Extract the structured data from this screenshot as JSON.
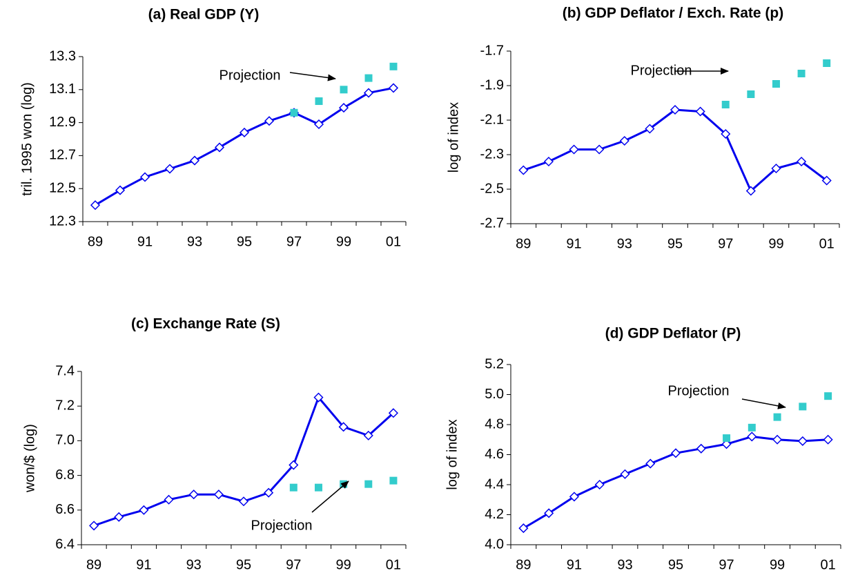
{
  "chart_data": [
    {
      "type": "line",
      "title": "(a) Real GDP (Y)",
      "y_label": "tril. 1995 won (log)",
      "annotation": "Projection",
      "categories": [
        "89",
        null,
        "91",
        null,
        "93",
        null,
        "95",
        null,
        "97",
        null,
        "99",
        null,
        "01"
      ],
      "series": [
        {
          "color": "#0000ee",
          "marker": "diamond",
          "line": true,
          "values": [
            12.4,
            12.49,
            12.57,
            12.62,
            12.67,
            12.75,
            12.84,
            12.91,
            12.96,
            12.89,
            12.99,
            13.08,
            13.11
          ]
        },
        {
          "color": "#33cccc",
          "marker": "square",
          "line": false,
          "values": [
            null,
            null,
            null,
            null,
            null,
            null,
            null,
            null,
            12.96,
            13.03,
            13.1,
            13.17,
            13.24
          ]
        }
      ],
      "ylim": [
        12.3,
        13.3
      ],
      "yticks": [
        12.3,
        12.5,
        12.7,
        12.9,
        13.1,
        13.3
      ]
    },
    {
      "type": "line",
      "title": "(b) GDP Deflator / Exch. Rate (p)",
      "y_label": "log of index",
      "annotation": "Projection",
      "categories": [
        "89",
        null,
        "91",
        null,
        "93",
        null,
        "95",
        null,
        "97",
        null,
        "99",
        null,
        "01"
      ],
      "series": [
        {
          "color": "#0000ee",
          "marker": "diamond",
          "line": true,
          "values": [
            -2.39,
            -2.34,
            -2.27,
            -2.27,
            -2.22,
            -2.15,
            -2.04,
            -2.05,
            -2.18,
            -2.51,
            -2.38,
            -2.34,
            -2.45
          ]
        },
        {
          "color": "#33cccc",
          "marker": "square",
          "line": false,
          "values": [
            null,
            null,
            null,
            null,
            null,
            null,
            null,
            null,
            -2.01,
            -1.95,
            -1.89,
            -1.83,
            -1.77
          ]
        }
      ],
      "ylim": [
        -2.7,
        -1.7
      ],
      "yticks": [
        -2.7,
        -2.5,
        -2.3,
        -2.1,
        -1.9,
        -1.7
      ]
    },
    {
      "type": "line",
      "title": "(c) Exchange Rate (S)",
      "y_label": "won/$ (log)",
      "annotation": "Projection",
      "categories": [
        "89",
        null,
        "91",
        null,
        "93",
        null,
        "95",
        null,
        "97",
        null,
        "99",
        null,
        "01"
      ],
      "series": [
        {
          "color": "#0000ee",
          "marker": "diamond",
          "line": true,
          "values": [
            6.51,
            6.56,
            6.6,
            6.66,
            6.69,
            6.69,
            6.65,
            6.7,
            6.86,
            7.25,
            7.08,
            7.03,
            7.16
          ]
        },
        {
          "color": "#33cccc",
          "marker": "square",
          "line": false,
          "values": [
            null,
            null,
            null,
            null,
            null,
            null,
            null,
            null,
            6.73,
            6.73,
            6.75,
            6.75,
            6.77
          ]
        }
      ],
      "ylim": [
        6.4,
        7.4
      ],
      "yticks": [
        6.4,
        6.6,
        6.8,
        {
          "value": 7,
          "label": "7.0"
        },
        7.2,
        7.4
      ]
    },
    {
      "type": "line",
      "title": "(d) GDP Deflator (P)",
      "y_label": "log of index",
      "annotation": "Projection",
      "categories": [
        "89",
        null,
        "91",
        null,
        "93",
        null,
        "95",
        null,
        "97",
        null,
        "99",
        null,
        "01"
      ],
      "series": [
        {
          "color": "#0000ee",
          "marker": "diamond",
          "line": true,
          "values": [
            4.11,
            4.21,
            4.32,
            4.4,
            4.47,
            4.54,
            4.61,
            4.64,
            4.67,
            4.72,
            4.7,
            4.69,
            4.7
          ]
        },
        {
          "color": "#33cccc",
          "marker": "square",
          "line": false,
          "values": [
            null,
            null,
            null,
            null,
            null,
            null,
            null,
            null,
            4.71,
            4.78,
            4.85,
            4.92,
            4.99
          ]
        }
      ],
      "ylim": [
        4.0,
        5.2
      ],
      "yticks": [
        {
          "value": 4,
          "label": "4.0"
        },
        4.2,
        4.4,
        4.6,
        4.8,
        {
          "value": 5,
          "label": "5.0"
        },
        5.2
      ]
    }
  ]
}
